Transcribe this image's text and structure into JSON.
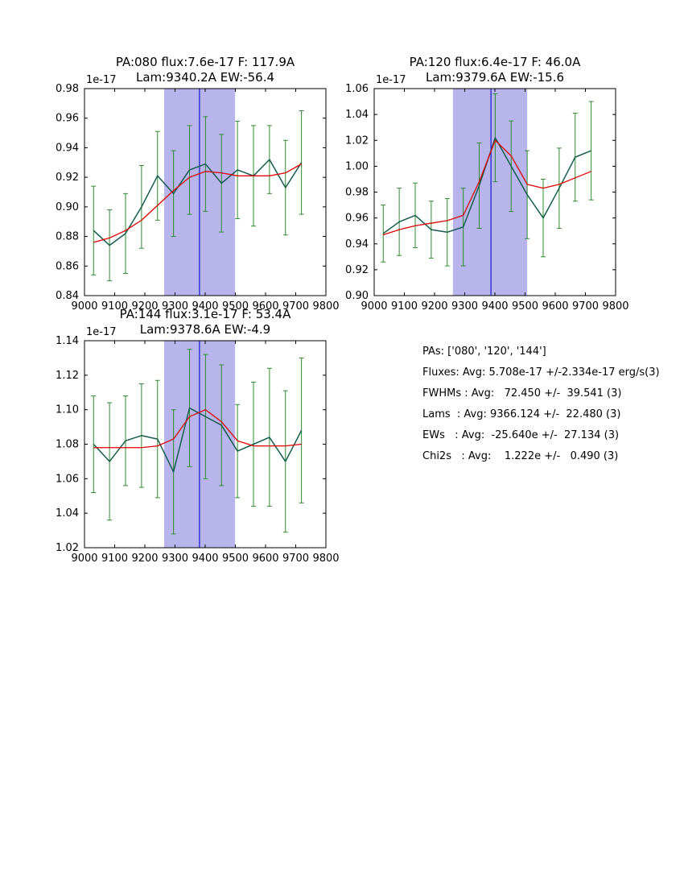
{
  "colors": {
    "data_line": "#145c4d",
    "error_bar": "#2e8b2e",
    "fit_line": "#e00000",
    "band": "#b8b5ec",
    "vline": "#2222cc",
    "axis": "#000000",
    "background": "#ffffff"
  },
  "stats_panel": {
    "lines": [
      "PAs: ['080', '120', '144']",
      "Fluxes: Avg: 5.708e-17 +/-2.334e-17 erg/s(3)",
      "FWHMs : Avg:   72.450 +/-  39.541 (3)",
      "Lams  : Avg: 9366.124 +/-  22.480 (3)",
      "EWs   : Avg:  -25.640e +/-  27.134 (3)",
      "Chi2s   : Avg:    1.222e +/-   0.490 (3)"
    ]
  },
  "chart_data": [
    {
      "type": "line",
      "title_line1": "PA:080 flux:7.6e-17 F: 117.9A",
      "title_line2": "Lam:9340.2A EW:-56.4",
      "offset_label": "1e-17",
      "xlim": [
        9000,
        9800
      ],
      "ylim": [
        0.84,
        0.98
      ],
      "xticks": [
        9000,
        9100,
        9200,
        9300,
        9400,
        9500,
        9600,
        9700,
        9800
      ],
      "xtick_labels": [
        "9000",
        "9100",
        "9200",
        "9300",
        "9400",
        "9500",
        "9600",
        "9700",
        "9800"
      ],
      "yticks": [
        0.84,
        0.86,
        0.88,
        0.9,
        0.92,
        0.94,
        0.96,
        0.98
      ],
      "ytick_labels": [
        "0.84",
        "0.86",
        "0.88",
        "0.90",
        "0.92",
        "0.94",
        "0.96",
        "0.98"
      ],
      "band": [
        9264,
        9499
      ],
      "vline": 9381,
      "grid": false,
      "legend": "none",
      "x": [
        9030,
        9083,
        9136,
        9189,
        9242,
        9295,
        9348,
        9401,
        9454,
        9507,
        9560,
        9613,
        9666,
        9719
      ],
      "series": [
        {
          "name": "spectrum",
          "color_key": "data_line",
          "values": [
            0.884,
            0.874,
            0.882,
            0.9,
            0.921,
            0.909,
            0.925,
            0.929,
            0.916,
            0.925,
            0.921,
            0.932,
            0.913,
            0.93
          ],
          "yerr": [
            0.03,
            0.024,
            0.027,
            0.028,
            0.03,
            0.029,
            0.03,
            0.032,
            0.033,
            0.033,
            0.034,
            0.023,
            0.032,
            0.035
          ]
        },
        {
          "name": "fit",
          "color_key": "fit_line",
          "values": [
            0.876,
            0.879,
            0.884,
            0.891,
            0.901,
            0.911,
            0.92,
            0.924,
            0.923,
            0.921,
            0.921,
            0.921,
            0.923,
            0.929
          ]
        }
      ]
    },
    {
      "type": "line",
      "title_line1": "PA:120 flux:6.4e-17 F: 46.0A",
      "title_line2": "Lam:9379.6A EW:-15.6",
      "offset_label": "1e-17",
      "xlim": [
        9000,
        9800
      ],
      "ylim": [
        0.9,
        1.06
      ],
      "xticks": [
        9000,
        9100,
        9200,
        9300,
        9400,
        9500,
        9600,
        9700,
        9800
      ],
      "xtick_labels": [
        "9000",
        "9100",
        "9200",
        "9300",
        "9400",
        "9500",
        "9600",
        "9700",
        "9800"
      ],
      "yticks": [
        0.9,
        0.92,
        0.94,
        0.96,
        0.98,
        1.0,
        1.02,
        1.04,
        1.06
      ],
      "ytick_labels": [
        "0.90",
        "0.92",
        "0.94",
        "0.96",
        "0.98",
        "1.00",
        "1.02",
        "1.04",
        "1.06"
      ],
      "band": [
        9261,
        9507
      ],
      "vline": 9387,
      "grid": false,
      "legend": "none",
      "x": [
        9030,
        9083,
        9136,
        9189,
        9242,
        9295,
        9348,
        9401,
        9454,
        9507,
        9560,
        9613,
        9666,
        9719
      ],
      "series": [
        {
          "name": "spectrum",
          "color_key": "data_line",
          "values": [
            0.948,
            0.957,
            0.962,
            0.951,
            0.949,
            0.953,
            0.985,
            1.022,
            1.0,
            0.978,
            0.96,
            0.983,
            1.007,
            1.012
          ],
          "yerr": [
            0.022,
            0.026,
            0.025,
            0.022,
            0.026,
            0.03,
            0.033,
            0.034,
            0.035,
            0.034,
            0.03,
            0.031,
            0.034,
            0.038
          ]
        },
        {
          "name": "fit",
          "color_key": "fit_line",
          "values": [
            0.947,
            0.951,
            0.954,
            0.956,
            0.958,
            0.962,
            0.988,
            1.02,
            1.008,
            0.986,
            0.983,
            0.986,
            0.991,
            0.996
          ]
        }
      ]
    },
    {
      "type": "line",
      "title_line1": "PA:144 flux:3.1e-17 F: 53.4A",
      "title_line2": "Lam:9378.6A EW:-4.9",
      "offset_label": "1e-17",
      "xlim": [
        9000,
        9800
      ],
      "ylim": [
        1.02,
        1.14
      ],
      "xticks": [
        9000,
        9100,
        9200,
        9300,
        9400,
        9500,
        9600,
        9700,
        9800
      ],
      "xtick_labels": [
        "9000",
        "9100",
        "9200",
        "9300",
        "9400",
        "9500",
        "9600",
        "9700",
        "9800"
      ],
      "yticks": [
        1.02,
        1.04,
        1.06,
        1.08,
        1.1,
        1.12,
        1.14
      ],
      "ytick_labels": [
        "1.02",
        "1.04",
        "1.06",
        "1.08",
        "1.10",
        "1.12",
        "1.14"
      ],
      "band": [
        9264,
        9499
      ],
      "vline": 9381,
      "grid": false,
      "legend": "none",
      "x": [
        9030,
        9083,
        9136,
        9189,
        9242,
        9295,
        9348,
        9401,
        9454,
        9507,
        9560,
        9613,
        9666,
        9719
      ],
      "series": [
        {
          "name": "spectrum",
          "color_key": "data_line",
          "values": [
            1.08,
            1.07,
            1.082,
            1.085,
            1.083,
            1.064,
            1.101,
            1.096,
            1.091,
            1.076,
            1.08,
            1.084,
            1.07,
            1.088
          ],
          "yerr": [
            0.028,
            0.034,
            0.026,
            0.03,
            0.034,
            0.036,
            0.034,
            0.036,
            0.035,
            0.027,
            0.036,
            0.04,
            0.041,
            0.042
          ]
        },
        {
          "name": "fit",
          "color_key": "fit_line",
          "values": [
            1.078,
            1.078,
            1.078,
            1.078,
            1.079,
            1.083,
            1.096,
            1.1,
            1.093,
            1.082,
            1.079,
            1.079,
            1.079,
            1.08
          ]
        }
      ]
    }
  ]
}
